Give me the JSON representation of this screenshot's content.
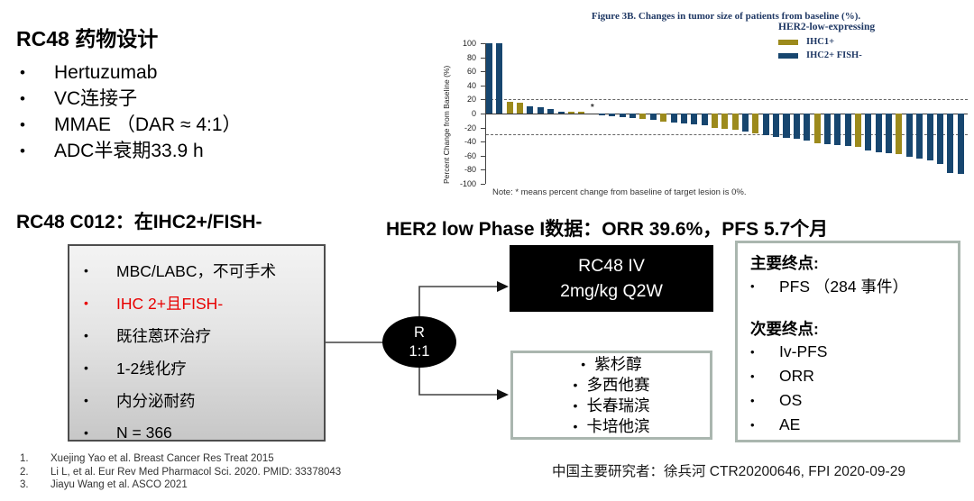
{
  "drug_design": {
    "title": "RC48 药物设计",
    "bullets": [
      "Hertuzumab",
      "VC连接子",
      "MMAE （DAR ≈ 4:1）",
      "ADC半衰期33.9 h"
    ]
  },
  "headings": {
    "left": "RC48 C012：在IHC2+/FISH-",
    "right": "HER2 low Phase I数据：ORR 39.6%，PFS 5.7个月"
  },
  "flow": {
    "inclusion": {
      "items": [
        {
          "text": "MBC/LABC，不可手术",
          "color": "#000000"
        },
        {
          "text": "IHC 2+且FISH-",
          "color": "#e80000"
        },
        {
          "text": "既往蒽环治疗",
          "color": "#000000"
        },
        {
          "text": "1-2线化疗",
          "color": "#000000"
        },
        {
          "text": "内分泌耐药",
          "color": "#000000"
        },
        {
          "text": "N = 366",
          "color": "#000000"
        }
      ]
    },
    "randomization": {
      "line1": "R",
      "line2": "1:1"
    },
    "arm1": {
      "line1": "RC48 IV",
      "line2": "2mg/kg Q2W"
    },
    "arm2": {
      "items": [
        "紫杉醇",
        "多西他赛",
        "长春瑞滨",
        "卡培他滨"
      ]
    },
    "endpoints": {
      "primary_label": "主要终点:",
      "primary_items": [
        "PFS （284 事件）"
      ],
      "secondary_label": "次要终点:",
      "secondary_items": [
        "Iv-PFS",
        "ORR",
        "OS",
        "AE"
      ]
    }
  },
  "references": [
    {
      "num": "1.",
      "text": "Xuejing Yao et al. Breast Cancer Res Treat 2015"
    },
    {
      "num": "2.",
      "text": "Li L, et al. Eur Rev Med Pharmacol Sci. 2020. PMID: 33378043"
    },
    {
      "num": "3.",
      "text": "Jiayu Wang et al. ASCO 2021"
    }
  ],
  "footer_right": "中国主要研究者：徐兵河 CTR20200646, FPI 2020-09-29",
  "colors": {
    "bar_blue": "#17466f",
    "bar_olive": "#9c8a1c",
    "box_border_sage": "#aab6af",
    "inclusion_red": "#e80000",
    "chart_text_navy": "#1f3864"
  },
  "chart_data": {
    "type": "bar",
    "title": "Figure 3B. Changes in tumor size of patients from baseline (%).",
    "xlabel": "",
    "ylabel": "Percent Change from Baseline (%)",
    "ylim": [
      -100,
      100
    ],
    "yticks": [
      100,
      80,
      60,
      40,
      20,
      0,
      -20,
      -40,
      -60,
      -80,
      -100
    ],
    "reference_lines": [
      20,
      -30
    ],
    "grid": false,
    "legend_position": "upper right",
    "legend": {
      "title": "HER2-low-expressing",
      "entries": [
        {
          "label": "IHC1+",
          "color": "#9c8a1c"
        },
        {
          "label": "IHC2+ FISH-",
          "color": "#17466f"
        }
      ]
    },
    "series_name": "Percent change from baseline per patient (waterfall)",
    "values": [
      100,
      100,
      17,
      16,
      10,
      9,
      6,
      3,
      2,
      2,
      0,
      -3,
      -4,
      -5,
      -6,
      -8,
      -9,
      -11,
      -13,
      -14,
      -15,
      -17,
      -20,
      -22,
      -23,
      -25,
      -28,
      -31,
      -33,
      -35,
      -36,
      -38,
      -42,
      -43,
      -45,
      -46,
      -48,
      -52,
      -55,
      -57,
      -58,
      -62,
      -64,
      -67,
      -72,
      -84,
      -86
    ],
    "groups": [
      "IHC2+ FISH-",
      "IHC2+ FISH-",
      "IHC1+",
      "IHC1+",
      "IHC2+ FISH-",
      "IHC2+ FISH-",
      "IHC2+ FISH-",
      "IHC2+ FISH-",
      "IHC1+",
      "IHC1+",
      "IHC2+ FISH-",
      "IHC2+ FISH-",
      "IHC2+ FISH-",
      "IHC2+ FISH-",
      "IHC2+ FISH-",
      "IHC1+",
      "IHC2+ FISH-",
      "IHC1+",
      "IHC2+ FISH-",
      "IHC2+ FISH-",
      "IHC2+ FISH-",
      "IHC2+ FISH-",
      "IHC1+",
      "IHC1+",
      "IHC1+",
      "IHC2+ FISH-",
      "IHC1+",
      "IHC2+ FISH-",
      "IHC2+ FISH-",
      "IHC2+ FISH-",
      "IHC2+ FISH-",
      "IHC2+ FISH-",
      "IHC1+",
      "IHC2+ FISH-",
      "IHC2+ FISH-",
      "IHC2+ FISH-",
      "IHC1+",
      "IHC2+ FISH-",
      "IHC2+ FISH-",
      "IHC2+ FISH-",
      "IHC1+",
      "IHC2+ FISH-",
      "IHC2+ FISH-",
      "IHC2+ FISH-",
      "IHC2+ FISH-",
      "IHC2+ FISH-",
      "IHC2+ FISH-"
    ],
    "annotations": [
      {
        "bar_index": 10,
        "text": "*"
      }
    ],
    "note": "Note: * means percent change from baseline of target lesion is 0%."
  }
}
